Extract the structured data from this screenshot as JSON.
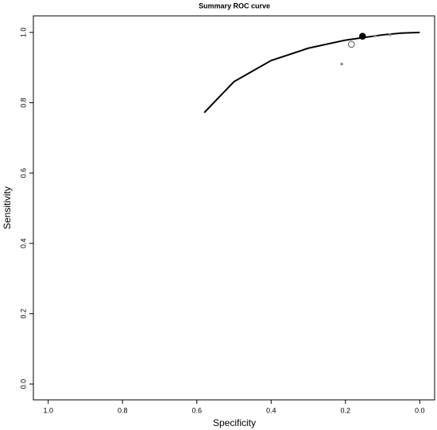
{
  "chart_data": {
    "type": "scatter",
    "title": "Summary ROC curve",
    "x_label": "Specificity",
    "y_label": "Sensitivity",
    "xlim": [
      1.04,
      -0.04
    ],
    "ylim": [
      -0.045,
      1.047
    ],
    "xticks": [
      {
        "value": 1,
        "label": "1.0"
      },
      0.8,
      0.6,
      0.4,
      0.2,
      {
        "value": 0,
        "label": "0.0"
      }
    ],
    "yticks": [
      {
        "value": 0,
        "label": "0.0"
      },
      0.2,
      0.4,
      0.6,
      0.8,
      {
        "value": 1,
        "label": "1.0"
      }
    ],
    "series": [
      {
        "marker": "line",
        "color": "#000000",
        "x": [
          0.58,
          0.5,
          0.4,
          0.3,
          0.2,
          0.1,
          0.05,
          0
        ],
        "values": [
          0.772,
          0.86,
          0.92,
          0.955,
          0.978,
          0.993,
          0.998,
          1.0
        ]
      },
      {
        "marker": "filled",
        "color": "#000000",
        "x": [
          0.154
        ],
        "values": [
          0.989
        ]
      },
      {
        "marker": "open",
        "color": "#555555",
        "x": [
          0.184
        ],
        "values": [
          0.966
        ]
      },
      {
        "marker": "small",
        "color": "#888888",
        "x": [
          0.21,
          0.12,
          0.08
        ],
        "values": [
          0.91,
          0.99,
          0.993
        ]
      }
    ]
  }
}
